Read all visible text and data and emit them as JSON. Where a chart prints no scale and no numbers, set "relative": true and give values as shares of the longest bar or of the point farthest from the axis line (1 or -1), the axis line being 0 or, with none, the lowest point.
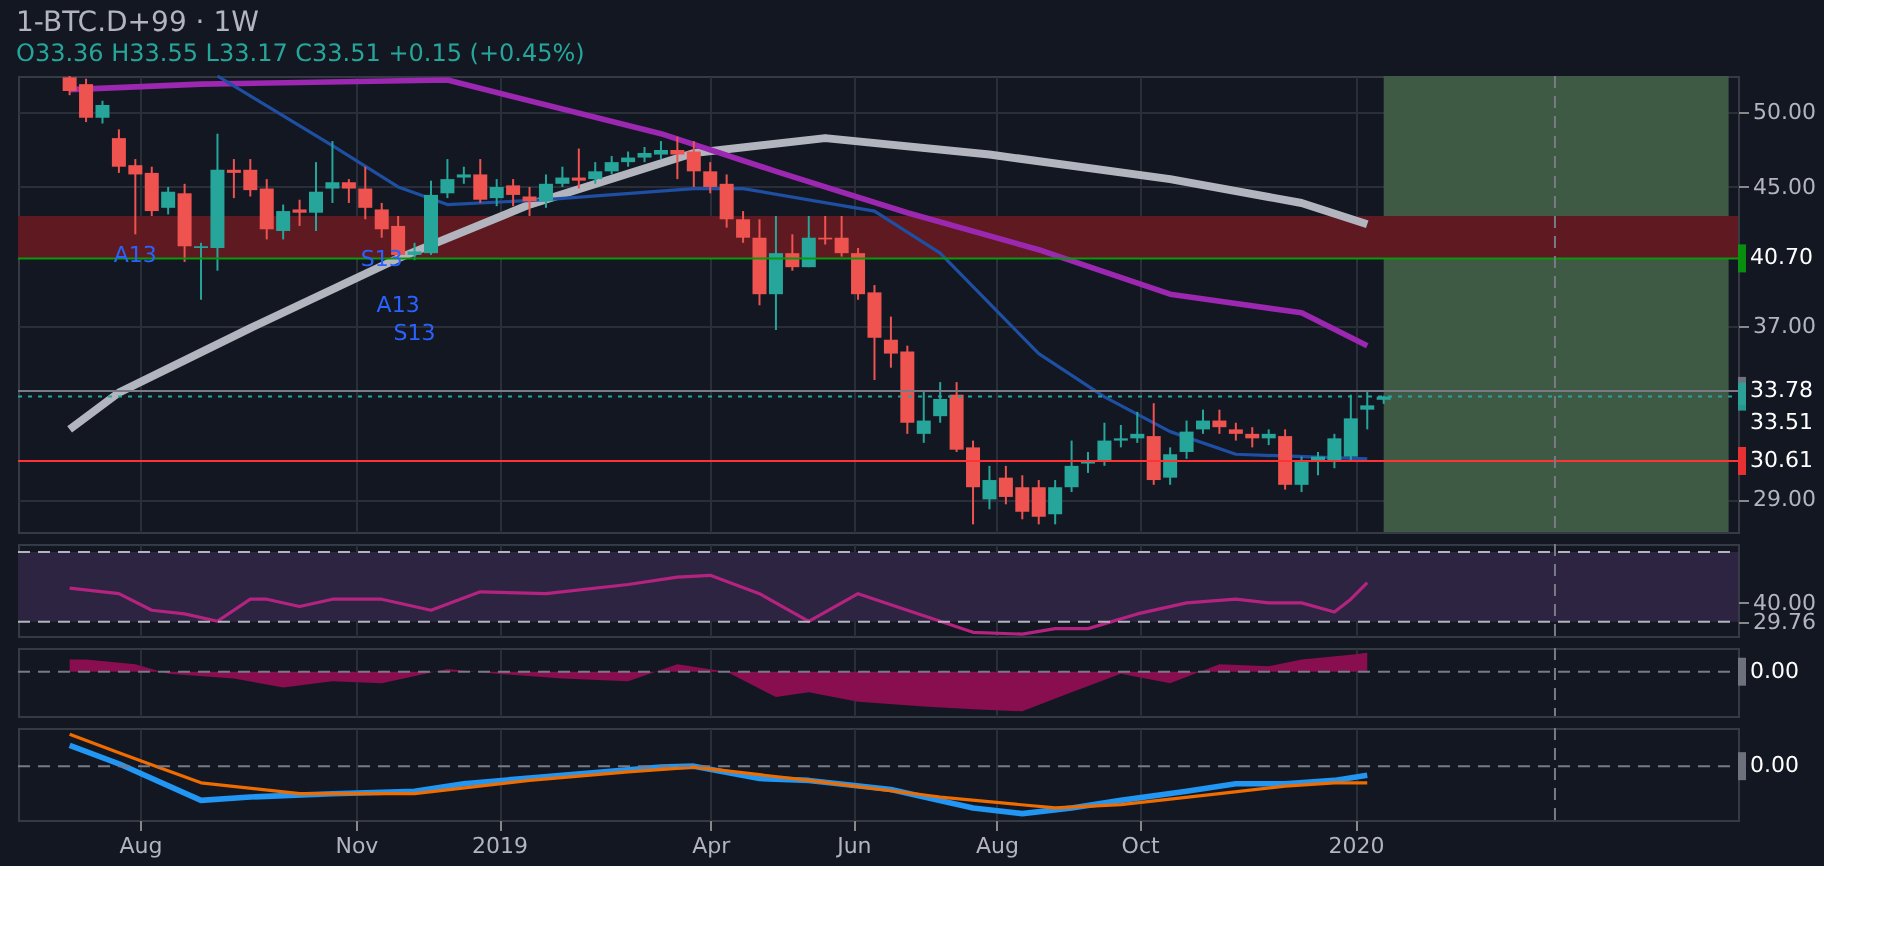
{
  "chart_data": [
    {
      "type": "candlestick",
      "title": "1-BTC.D+99 · 1W",
      "subtitle": "O33.36 H33.55 L33.17 C33.51 +0.15 (+0.45%)",
      "x": [
        "2018-07-02",
        "2018-07-09",
        "2018-07-16",
        "2018-07-23",
        "2018-07-30",
        "2018-08-06",
        "2018-08-13",
        "2018-08-20",
        "2018-08-27",
        "2018-09-03",
        "2018-09-10",
        "2018-09-17",
        "2018-09-24",
        "2018-10-01",
        "2018-10-08",
        "2018-10-15",
        "2018-10-22",
        "2018-10-29",
        "2018-11-05",
        "2018-11-12",
        "2018-11-19",
        "2018-11-26",
        "2018-12-03",
        "2018-12-10",
        "2018-12-17",
        "2018-12-24",
        "2018-12-31",
        "2019-01-07",
        "2019-01-14",
        "2019-01-21",
        "2019-01-28",
        "2019-02-04",
        "2019-02-11",
        "2019-02-18",
        "2019-02-25",
        "2019-03-04",
        "2019-03-11",
        "2019-03-18",
        "2019-03-25",
        "2019-04-01",
        "2019-04-08",
        "2019-04-15",
        "2019-04-22",
        "2019-04-29",
        "2019-05-06",
        "2019-05-13",
        "2019-05-20",
        "2019-05-27",
        "2019-06-03",
        "2019-06-10",
        "2019-06-17",
        "2019-06-24",
        "2019-07-01",
        "2019-07-08",
        "2019-07-15",
        "2019-07-22",
        "2019-07-29",
        "2019-08-05",
        "2019-08-12",
        "2019-08-19",
        "2019-08-26",
        "2019-09-02",
        "2019-09-09",
        "2019-09-16",
        "2019-09-23",
        "2019-09-30",
        "2019-10-07",
        "2019-10-14",
        "2019-10-21",
        "2019-10-28",
        "2019-11-04",
        "2019-11-11",
        "2019-11-18",
        "2019-11-25",
        "2019-12-02",
        "2019-12-09",
        "2019-12-16",
        "2019-12-23",
        "2019-12-30",
        "2020-01-06",
        "2020-01-13"
      ],
      "ohlc": [
        [
          52.5,
          52.6,
          51.2,
          51.5
        ],
        [
          52.0,
          52.4,
          49.3,
          49.6
        ],
        [
          49.6,
          50.8,
          49.2,
          50.5
        ],
        [
          48.2,
          48.8,
          45.9,
          46.3
        ],
        [
          46.4,
          46.8,
          42.1,
          45.8
        ],
        [
          45.9,
          46.3,
          43.2,
          43.5
        ],
        [
          43.7,
          45.0,
          43.3,
          44.7
        ],
        [
          44.6,
          45.2,
          40.5,
          41.4
        ],
        [
          41.3,
          41.6,
          38.4,
          41.4
        ],
        [
          41.3,
          48.5,
          40.0,
          46.1
        ],
        [
          46.1,
          46.8,
          44.3,
          45.9
        ],
        [
          46.1,
          46.8,
          44.4,
          44.8
        ],
        [
          44.9,
          45.5,
          41.8,
          42.4
        ],
        [
          42.3,
          43.9,
          41.8,
          43.5
        ],
        [
          43.6,
          44.2,
          42.6,
          43.4
        ],
        [
          43.4,
          46.6,
          42.3,
          44.7
        ],
        [
          44.9,
          48.0,
          44.0,
          45.3
        ],
        [
          45.3,
          45.5,
          44.0,
          44.9
        ],
        [
          44.9,
          46.3,
          43.0,
          43.7
        ],
        [
          43.6,
          44.0,
          41.9,
          42.4
        ],
        [
          42.6,
          43.2,
          40.7,
          40.9
        ],
        [
          40.9,
          41.6,
          40.6,
          41.1
        ],
        [
          41.0,
          45.4,
          40.9,
          44.5
        ],
        [
          44.6,
          46.8,
          44.3,
          45.5
        ],
        [
          45.6,
          46.3,
          45.2,
          45.8
        ],
        [
          45.8,
          46.8,
          44.0,
          44.2
        ],
        [
          44.3,
          45.5,
          43.8,
          45.0
        ],
        [
          45.1,
          45.5,
          43.8,
          44.5
        ],
        [
          44.4,
          45.0,
          43.2,
          44.1
        ],
        [
          44.1,
          45.8,
          43.7,
          45.2
        ],
        [
          45.2,
          46.3,
          45.0,
          45.6
        ],
        [
          45.6,
          47.5,
          44.9,
          45.4
        ],
        [
          45.5,
          46.6,
          45.2,
          46.0
        ],
        [
          46.0,
          47.0,
          45.8,
          46.6
        ],
        [
          46.6,
          47.3,
          46.3,
          46.9
        ],
        [
          46.9,
          47.6,
          46.6,
          47.2
        ],
        [
          47.1,
          48.0,
          46.8,
          47.4
        ],
        [
          47.4,
          48.3,
          45.5,
          47.1
        ],
        [
          47.3,
          48.0,
          45.0,
          46.0
        ],
        [
          46.0,
          46.6,
          44.6,
          45.0
        ],
        [
          45.2,
          45.8,
          42.5,
          43.0
        ],
        [
          43.0,
          43.5,
          41.6,
          41.9
        ],
        [
          41.9,
          43.0,
          38.1,
          38.7
        ],
        [
          38.7,
          43.2,
          36.8,
          41.0
        ],
        [
          41.0,
          42.1,
          40.0,
          40.2
        ],
        [
          40.2,
          43.2,
          40.2,
          41.9
        ],
        [
          41.9,
          43.2,
          41.5,
          41.8
        ],
        [
          41.9,
          43.2,
          40.8,
          41.0
        ],
        [
          41.0,
          41.3,
          38.4,
          38.7
        ],
        [
          38.8,
          39.2,
          34.3,
          36.4
        ],
        [
          36.3,
          37.5,
          34.9,
          35.6
        ],
        [
          35.7,
          36.0,
          31.8,
          32.3
        ],
        [
          31.8,
          33.8,
          31.4,
          32.4
        ],
        [
          32.6,
          34.2,
          32.3,
          33.4
        ],
        [
          33.6,
          34.2,
          31.0,
          31.1
        ],
        [
          31.2,
          31.5,
          28.0,
          29.5
        ],
        [
          29.0,
          30.4,
          28.6,
          29.8
        ],
        [
          29.9,
          30.4,
          28.8,
          29.1
        ],
        [
          29.5,
          30.0,
          28.2,
          28.5
        ],
        [
          29.5,
          29.8,
          28.0,
          28.3
        ],
        [
          28.4,
          29.8,
          28.0,
          29.5
        ],
        [
          29.5,
          31.5,
          29.3,
          30.4
        ],
        [
          30.5,
          31.0,
          30.1,
          30.6
        ],
        [
          30.6,
          32.3,
          30.4,
          31.5
        ],
        [
          31.5,
          32.2,
          31.2,
          31.6
        ],
        [
          31.6,
          32.8,
          31.4,
          31.8
        ],
        [
          31.7,
          33.2,
          29.6,
          29.8
        ],
        [
          29.9,
          31.2,
          29.6,
          30.9
        ],
        [
          31.0,
          32.4,
          30.7,
          31.9
        ],
        [
          32.0,
          32.9,
          31.8,
          32.4
        ],
        [
          32.4,
          32.9,
          31.8,
          32.1
        ],
        [
          32.0,
          32.3,
          31.5,
          31.8
        ],
        [
          31.8,
          32.1,
          31.2,
          31.6
        ],
        [
          31.6,
          32.0,
          31.3,
          31.8
        ],
        [
          31.7,
          32.0,
          29.4,
          29.6
        ],
        [
          29.6,
          30.8,
          29.3,
          30.6
        ],
        [
          30.6,
          31.0,
          30.0,
          30.8
        ],
        [
          30.6,
          31.8,
          30.3,
          31.6
        ],
        [
          30.8,
          33.6,
          30.6,
          32.5
        ],
        [
          32.9,
          33.8,
          32.0,
          33.1
        ],
        [
          33.36,
          33.55,
          33.17,
          33.51
        ]
      ],
      "series": [
        {
          "type": "line",
          "color": "#b2b5be",
          "x": [
            "2018-07-02",
            "2018-07-23",
            "2018-09-17",
            "2018-11-19",
            "2019-01-14",
            "2019-03-25",
            "2019-05-20",
            "2019-07-29",
            "2019-10-14",
            "2019-12-09",
            "2020-01-06"
          ],
          "values": [
            32.0,
            33.7,
            36.9,
            40.7,
            43.9,
            47.2,
            48.2,
            47.1,
            45.5,
            44.0,
            42.7
          ]
        },
        {
          "type": "line",
          "color": "#9c27b0",
          "x": [
            "2018-07-02",
            "2018-08-27",
            "2018-12-10",
            "2019-03-11",
            "2019-04-29",
            "2019-06-24",
            "2019-08-19",
            "2019-10-14",
            "2019-12-09",
            "2020-01-06"
          ],
          "values": [
            51.6,
            52.0,
            52.3,
            48.5,
            46.0,
            43.4,
            41.2,
            38.7,
            37.7,
            36.0
          ]
        },
        {
          "type": "line",
          "color": "#1e4fa3",
          "x": [
            "2018-09-03",
            "2018-10-22",
            "2018-11-19",
            "2018-12-10",
            "2019-01-21",
            "2019-03-25",
            "2019-04-15",
            "2019-06-10",
            "2019-07-08",
            "2019-08-19",
            "2019-09-16",
            "2019-10-14",
            "2019-11-11",
            "2020-01-06"
          ],
          "values": [
            52.6,
            47.7,
            45.0,
            43.9,
            44.2,
            44.9,
            44.9,
            43.5,
            41.0,
            35.6,
            33.5,
            31.9,
            30.9,
            30.7
          ]
        }
      ],
      "xlim": [
        "2018-06-10",
        "2020-06-12"
      ],
      "xticks": [
        {
          "value": "2018-08-01",
          "label": null
        },
        {
          "value": "2018-11-01",
          "label": null
        },
        {
          "value": "2019-01-01",
          "label": null
        },
        {
          "value": "2019-04-01",
          "label": null
        },
        {
          "value": "2019-06-01",
          "label": null
        },
        {
          "value": "2019-08-01",
          "label": null
        },
        {
          "value": "2019-10-01",
          "label": null
        },
        {
          "value": "2020-01-01",
          "label": null
        }
      ],
      "ylim": [
        27.7,
        52.6
      ],
      "log": true,
      "yticks": [
        {
          "value": 29,
          "label": "29.00"
        },
        {
          "value": 37,
          "label": "37.00"
        },
        {
          "value": 45,
          "label": "45.00"
        },
        {
          "value": 50,
          "label": "50.00"
        }
      ],
      "bands": [
        {
          "axis": "x",
          "from": "2020-01-13",
          "to": "2020-06-08",
          "color": "#3f5a44"
        },
        {
          "axis": "y",
          "from": 40.7,
          "to": 43.2,
          "color": "#5e1a20"
        }
      ],
      "ref_lines": [
        {
          "axis": "y",
          "value": 40.7,
          "label": "40.70",
          "color": "#089a0c",
          "line_style": "solid"
        },
        {
          "axis": "y",
          "value": 33.78,
          "label": "33.78",
          "color": "#787b86",
          "line_style": "solid"
        },
        {
          "axis": "y",
          "value": 33.51,
          "label": "33.51",
          "color": "#26a69a",
          "line_style": "dotted"
        },
        {
          "axis": "y",
          "value": 30.61,
          "label": "30.61",
          "color": "#ff3333",
          "line_style": "solid"
        },
        {
          "axis": "x",
          "value": "2020-03-26",
          "label": null,
          "color": "#787b86",
          "line_style": "dashed"
        }
      ],
      "annotations": [
        {
          "text": "A13",
          "x": "2018-07-30",
          "y": 42.1
        },
        {
          "text": "S13",
          "x": "2018-11-12",
          "y": 41.9
        },
        {
          "text": "A13",
          "x": "2018-11-19",
          "y": 40.7
        },
        {
          "text": "S13",
          "x": "2018-11-26",
          "y": 40.6
        }
      ],
      "grid": true,
      "tick_labels": "y"
    },
    {
      "type": "line",
      "series": [
        {
          "color": "#b4237f",
          "x": [
            "2018-07-02",
            "2018-07-23",
            "2018-08-06",
            "2018-08-20",
            "2018-09-03",
            "2018-09-17",
            "2018-09-24",
            "2018-10-08",
            "2018-10-22",
            "2018-11-12",
            "2018-12-03",
            "2018-12-24",
            "2019-01-21",
            "2019-02-25",
            "2019-03-18",
            "2019-04-01",
            "2019-04-22",
            "2019-05-13",
            "2019-06-03",
            "2019-07-01",
            "2019-07-22",
            "2019-08-12",
            "2019-08-26",
            "2019-09-09",
            "2019-09-30",
            "2019-10-21",
            "2019-11-11",
            "2019-11-25",
            "2019-12-09",
            "2019-12-23",
            "2019-12-30",
            "2020-01-06"
          ],
          "values": [
            48,
            45,
            36,
            34,
            30,
            42,
            42,
            38,
            42,
            42,
            36,
            46,
            45,
            50,
            54,
            55,
            45,
            30,
            45,
            33,
            24,
            23,
            26,
            26,
            34,
            40,
            42,
            40,
            40,
            35,
            42,
            51
          ]
        }
      ],
      "xlim": [
        "2018-06-10",
        "2020-06-12"
      ],
      "xticks": [
        {
          "value": "2018-08-01",
          "label": null
        },
        {
          "value": "2018-11-01",
          "label": null
        },
        {
          "value": "2019-01-01",
          "label": null
        },
        {
          "value": "2019-04-01",
          "label": null
        },
        {
          "value": "2019-06-01",
          "label": null
        },
        {
          "value": "2019-08-01",
          "label": null
        },
        {
          "value": "2019-10-01",
          "label": null
        },
        {
          "value": "2020-01-01",
          "label": null
        }
      ],
      "ylim": [
        22,
        72
      ],
      "yticks": [
        {
          "value": 29.76,
          "label": "29.76"
        },
        {
          "value": 40,
          "label": "40.00"
        }
      ],
      "bands": [
        {
          "axis": "y",
          "from": 29.76,
          "to": 67.7,
          "color": "#2d2442"
        }
      ],
      "ref_lines": [
        {
          "axis": "y",
          "value": 67.7,
          "label": null,
          "color": "#b2b5be",
          "line_style": "dashed"
        },
        {
          "axis": "y",
          "value": 29.76,
          "label": null,
          "color": "#b2b5be",
          "line_style": "dashed"
        },
        {
          "axis": "x",
          "value": "2020-03-26",
          "label": null,
          "color": "#787b86",
          "line_style": "dashed"
        }
      ],
      "grid": "x",
      "tick_labels": "y"
    },
    {
      "type": "area",
      "relative": true,
      "series": [
        {
          "color": "#880e4f",
          "x": [
            "2018-07-02",
            "2018-07-09",
            "2018-07-30",
            "2018-08-13",
            "2018-09-10",
            "2018-10-01",
            "2018-10-22",
            "2018-11-12",
            "2018-12-10",
            "2018-12-31",
            "2019-01-28",
            "2019-02-25",
            "2019-03-18",
            "2019-04-08",
            "2019-04-29",
            "2019-05-13",
            "2019-06-03",
            "2019-07-01",
            "2019-07-22",
            "2019-08-12",
            "2019-09-02",
            "2019-09-23",
            "2019-10-14",
            "2019-11-04",
            "2019-11-25",
            "2019-12-09",
            "2019-12-30",
            "2020-01-06"
          ],
          "values": [
            0.31,
            0.31,
            0.19,
            -0.05,
            -0.17,
            -0.4,
            -0.24,
            -0.29,
            0.07,
            -0.05,
            -0.17,
            -0.24,
            0.19,
            0,
            -0.64,
            -0.52,
            -0.76,
            -0.88,
            -0.95,
            -1,
            -0.52,
            -0.05,
            -0.29,
            0.19,
            0.14,
            0.31,
            0.43,
            0.48
          ]
        }
      ],
      "xlim": [
        "2018-06-10",
        "2020-06-12"
      ],
      "xticks": [
        {
          "value": "2018-08-01",
          "label": null
        },
        {
          "value": "2018-11-01",
          "label": null
        },
        {
          "value": "2019-01-01",
          "label": null
        },
        {
          "value": "2019-04-01",
          "label": null
        },
        {
          "value": "2019-06-01",
          "label": null
        },
        {
          "value": "2019-08-01",
          "label": null
        },
        {
          "value": "2019-10-01",
          "label": null
        },
        {
          "value": "2020-01-01",
          "label": null
        }
      ],
      "ref_lines": [
        {
          "axis": "y",
          "value": 0,
          "label": "0.00",
          "color": "#787b86",
          "line_style": "dashed"
        },
        {
          "axis": "x",
          "value": "2020-03-26",
          "label": null,
          "color": "#787b86",
          "line_style": "dashed"
        }
      ],
      "grid": "x",
      "tick_labels": false
    },
    {
      "type": "line",
      "relative": true,
      "series": [
        {
          "color": "#2196f3",
          "x": [
            "2018-07-02",
            "2018-07-23",
            "2018-08-27",
            "2018-09-17",
            "2018-10-22",
            "2018-11-26",
            "2018-12-17",
            "2019-01-28",
            "2019-03-11",
            "2019-03-25",
            "2019-04-22",
            "2019-05-13",
            "2019-06-17",
            "2019-07-22",
            "2019-08-12",
            "2019-09-02",
            "2019-09-23",
            "2019-10-21",
            "2019-11-11",
            "2019-12-02",
            "2019-12-23",
            "2020-01-06"
          ],
          "values": [
            0.44,
            0.05,
            -0.72,
            -0.65,
            -0.58,
            -0.53,
            -0.37,
            -0.19,
            -0.02,
            0,
            -0.26,
            -0.3,
            -0.49,
            -0.88,
            -1,
            -0.88,
            -0.72,
            -0.53,
            -0.37,
            -0.37,
            -0.3,
            -0.19
          ]
        },
        {
          "color": "#ef6c00",
          "x": [
            "2018-07-02",
            "2018-07-23",
            "2018-08-27",
            "2018-10-08",
            "2018-11-26",
            "2019-01-14",
            "2019-02-25",
            "2019-03-25",
            "2019-05-13",
            "2019-07-08",
            "2019-08-26",
            "2019-09-23",
            "2019-11-04",
            "2019-12-02",
            "2019-12-23",
            "2020-01-06"
          ],
          "values": [
            0.67,
            0.28,
            -0.35,
            -0.58,
            -0.58,
            -0.3,
            -0.12,
            -0.02,
            -0.3,
            -0.65,
            -0.88,
            -0.81,
            -0.58,
            -0.42,
            -0.35,
            -0.35
          ]
        }
      ],
      "xlim": [
        "2018-06-10",
        "2020-06-12"
      ],
      "xticks": [
        {
          "value": "2018-08-01",
          "label": "Aug"
        },
        {
          "value": "2018-11-01",
          "label": "Nov"
        },
        {
          "value": "2019-01-01",
          "label": "2019"
        },
        {
          "value": "2019-04-01",
          "label": "Apr"
        },
        {
          "value": "2019-06-01",
          "label": "Jun"
        },
        {
          "value": "2019-08-01",
          "label": "Aug"
        },
        {
          "value": "2019-10-01",
          "label": "Oct"
        },
        {
          "value": "2020-01-01",
          "label": "2020"
        }
      ],
      "ref_lines": [
        {
          "axis": "y",
          "value": 0,
          "label": "0.00",
          "color": "#787b86",
          "line_style": "dashed"
        },
        {
          "axis": "x",
          "value": "2020-03-26",
          "label": null,
          "color": "#787b86",
          "line_style": "dashed"
        }
      ],
      "grid": "x",
      "tick_labels": "x"
    }
  ]
}
